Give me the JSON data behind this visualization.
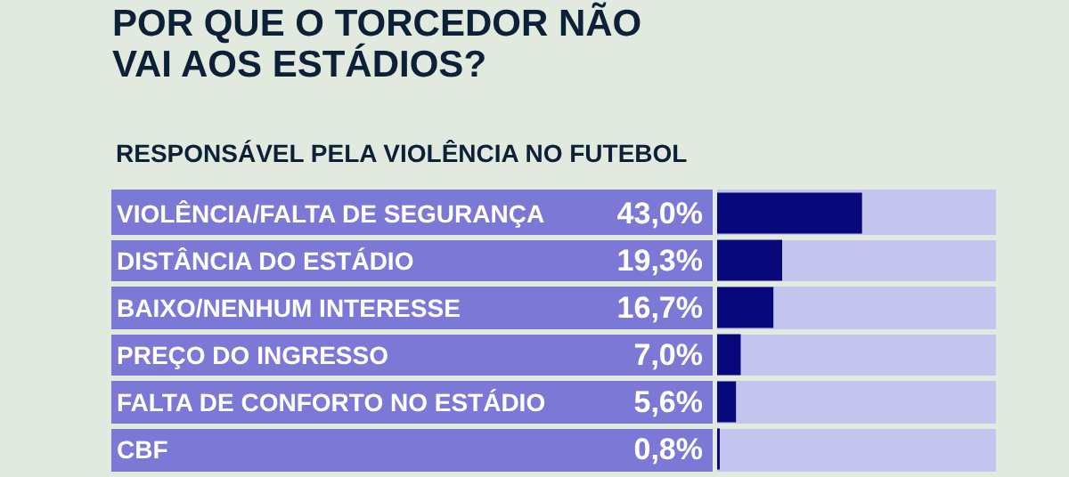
{
  "chart_data": {
    "type": "bar",
    "orientation": "horizontal",
    "title": "POR QUE O TORCEDOR NÃO VAI AOS ESTÁDIOS?",
    "subtitle": "RESPONSÁVEL PELA VIOLÊNCIA NO FUTEBOL",
    "categories": [
      "VIOLÊNCIA/FALTA DE SEGURANÇA",
      "DISTÂNCIA DO ESTÁDIO",
      "BAIXO/NENHUM INTERESSE",
      "PREÇO DO INGRESSO",
      "FALTA DE CONFORTO NO ESTÁDIO",
      "CBF"
    ],
    "values": [
      43.0,
      19.3,
      16.7,
      7.0,
      5.6,
      0.8
    ],
    "value_labels": [
      "43,0%",
      "19,3%",
      "16,7%",
      "7,0%",
      "5,6%",
      "0,8%"
    ],
    "color": "#08087a",
    "xlim": [
      0,
      83
    ],
    "tick_labels": "y"
  }
}
